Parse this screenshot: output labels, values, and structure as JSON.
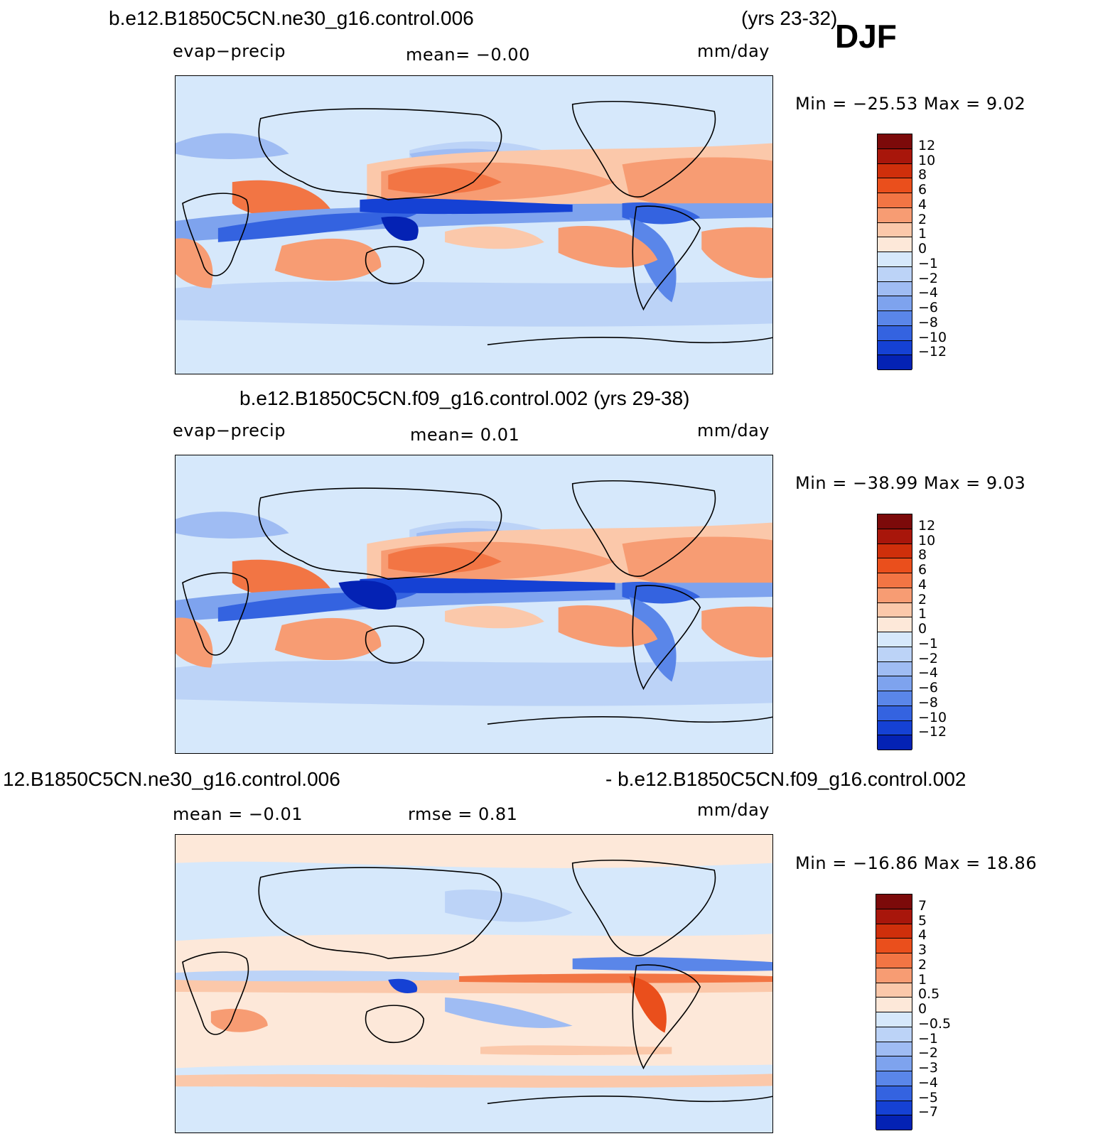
{
  "season": "DJF",
  "colors": {
    "neg": [
      "#d6e8fb",
      "#bcd3f7",
      "#9fbcf3",
      "#7ea3ee",
      "#5a86e9",
      "#3463e0",
      "#1541d4",
      "#0422b4",
      "#01127a"
    ],
    "pos": [
      "#fde8d9",
      "#fbc8aa",
      "#f79c73",
      "#f27544",
      "#ea4f1c",
      "#cf2f0b",
      "#a8160b",
      "#7c0a0a"
    ]
  },
  "panels": [
    {
      "title_left": "b.e12.B1850C5CN.ne30_g16.control.006",
      "title_right": "(yrs 23-32)",
      "left_label": "evap−precip",
      "mean_label": "mean=   −0.00",
      "units": "mm/day",
      "minmax": "Min  =  −25.53  Max  =     9.02",
      "levels": [
        "12",
        "10",
        "8",
        "6",
        "4",
        "2",
        "1",
        "0",
        "−1",
        "−2",
        "−4",
        "−6",
        "−8",
        "−10",
        "−12"
      ]
    },
    {
      "title": "b.e12.B1850C5CN.f09_g16.control.002 (yrs 29-38)",
      "left_label": "evap−precip",
      "mean_label": "mean=     0.01",
      "units": "mm/day",
      "minmax": "Min  =  −38.99  Max  =     9.03",
      "levels": [
        "12",
        "10",
        "8",
        "6",
        "4",
        "2",
        "1",
        "0",
        "−1",
        "−2",
        "−4",
        "−6",
        "−8",
        "−10",
        "−12"
      ]
    },
    {
      "title_left": "12.B1850C5CN.ne30_g16.control.006",
      "title_right": "- b.e12.B1850C5CN.f09_g16.control.002",
      "left_label": "mean  =    −0.01",
      "mean_label": "rmse  =     0.81",
      "units": "mm/day",
      "minmax": "Min  =  −16.86  Max  =    18.86",
      "levels": [
        "7",
        "5",
        "4",
        "3",
        "2",
        "1",
        "0.5",
        "0",
        "−0.5",
        "−1",
        "−2",
        "−3",
        "−4",
        "−5",
        "−7"
      ]
    }
  ]
}
